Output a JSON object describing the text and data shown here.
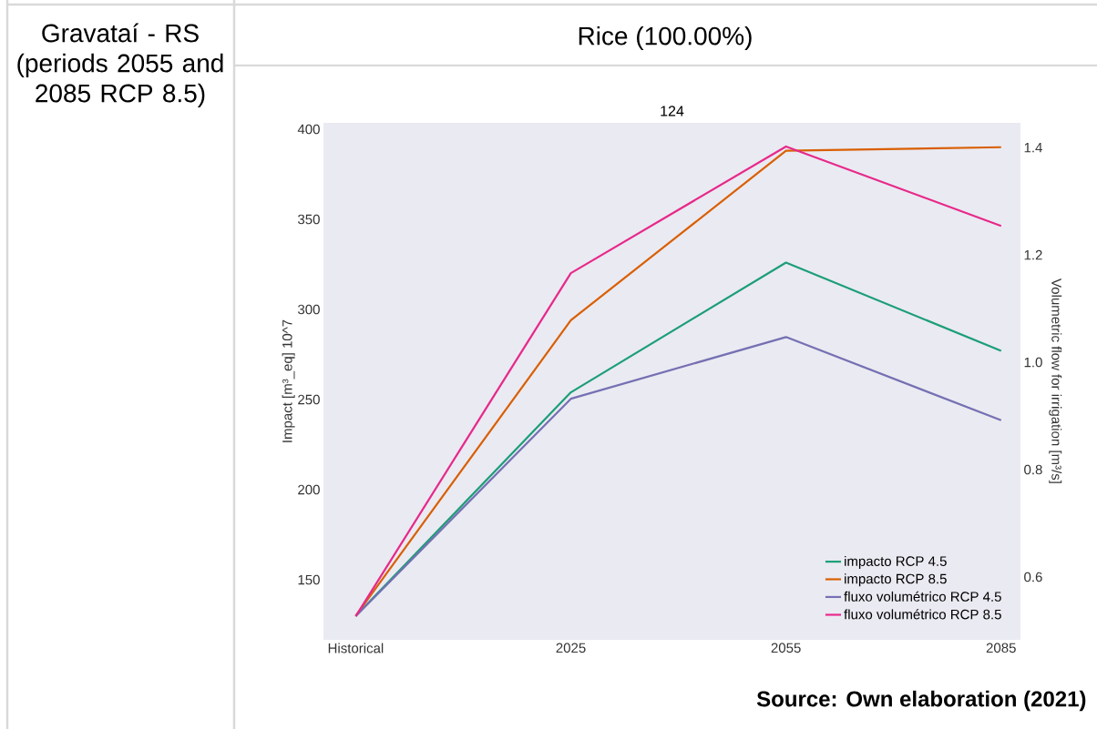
{
  "chart_data": {
    "type": "line",
    "title": "124",
    "subtitle": "Rice (100.00%)",
    "ylabel": "Impact [m³_eq] 10^7",
    "y2label": "Volumetric flow for irrigation [m³/s]",
    "annotations": [
      "Gravataí - RS (periods 2055 and 2085 RCP 8.5)",
      "Source: Own elaboration (2021)"
    ],
    "categories": [
      "Historical",
      "2025",
      "2055",
      "2085"
    ],
    "series": [
      {
        "name": "impacto RCP 4.5",
        "color": "#1b9e77",
        "values": [
          130,
          254,
          326,
          277
        ]
      },
      {
        "name": "impacto RCP 8.5",
        "color": "#d95f02",
        "values": [
          130,
          294,
          388,
          390
        ]
      },
      {
        "name": "fluxo volumétrico RCP 4.5",
        "color": "#7570b3",
        "axis": "y2",
        "values": [
          0.527,
          0.932,
          1.047,
          0.892
        ]
      },
      {
        "name": "fluxo volumétrico RCP 8.5",
        "color": "#e7298a",
        "axis": "y2",
        "values": [
          0.527,
          1.166,
          1.402,
          1.254
        ]
      }
    ],
    "ylim": [
      116.7,
      403.5
    ],
    "yticks": [
      150,
      200,
      250,
      300,
      350,
      400
    ],
    "y2lim": [
      0.483,
      1.446
    ],
    "y2ticks": [
      0.6,
      0.8,
      {
        "value": 1.0,
        "label": "1.0"
      },
      1.2,
      1.4
    ],
    "legend": "bottom right"
  }
}
